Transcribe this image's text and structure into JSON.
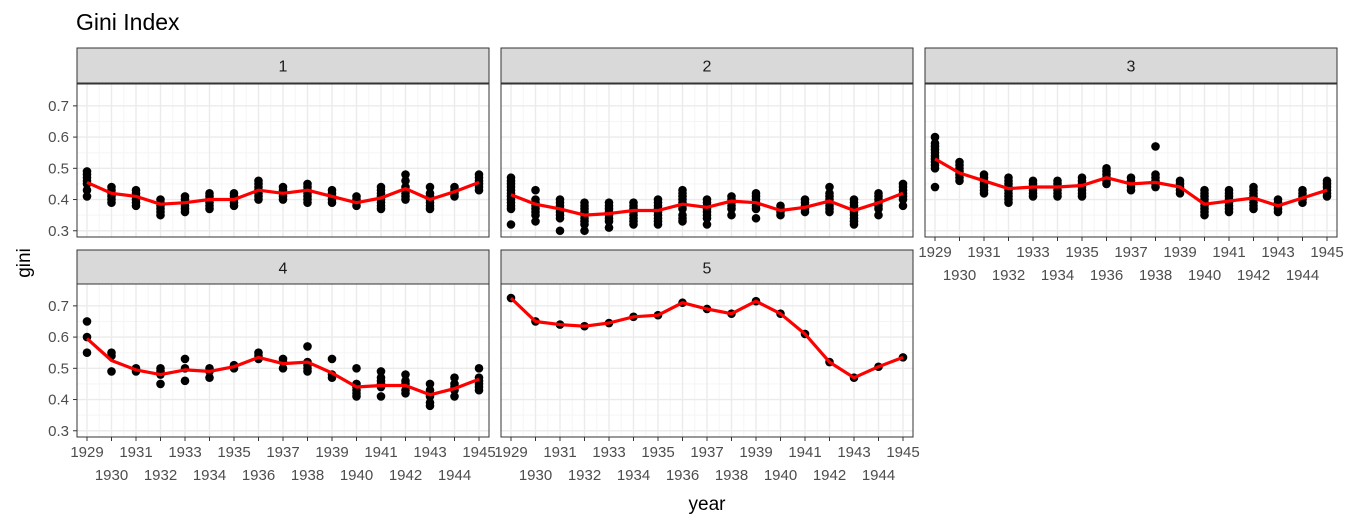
{
  "chart_data": {
    "type": "scatter",
    "title": "Gini Index",
    "xlabel": "year",
    "ylabel": "gini",
    "ylim": [
      0.28,
      0.77
    ],
    "y_ticks": [
      0.3,
      0.4,
      0.5,
      0.6,
      0.7
    ],
    "x_ticks": [
      1929,
      1930,
      1931,
      1932,
      1933,
      1934,
      1935,
      1936,
      1937,
      1938,
      1939,
      1940,
      1941,
      1942,
      1943,
      1944,
      1945
    ],
    "grid": true,
    "facet_layout": "3 columns, 2 rows",
    "colors": {
      "points": "#000000",
      "line": "#ff0000",
      "strip_fill": "#d9d9d9",
      "grid_major": "#ebebeb",
      "grid_minor": "#f5f5f5",
      "panel_border": "#333333"
    },
    "facets": [
      {
        "label": "1",
        "points": [
          [
            1929,
            [
              0.41,
              0.43,
              0.45,
              0.46,
              0.47,
              0.48,
              0.49
            ]
          ],
          [
            1930,
            [
              0.39,
              0.4,
              0.41,
              0.42,
              0.43,
              0.44
            ]
          ],
          [
            1931,
            [
              0.38,
              0.39,
              0.4,
              0.41,
              0.42,
              0.43
            ]
          ],
          [
            1932,
            [
              0.35,
              0.36,
              0.37,
              0.38,
              0.39,
              0.4
            ]
          ],
          [
            1933,
            [
              0.36,
              0.37,
              0.38,
              0.39,
              0.4,
              0.41
            ]
          ],
          [
            1934,
            [
              0.37,
              0.38,
              0.39,
              0.4,
              0.41,
              0.42
            ]
          ],
          [
            1935,
            [
              0.38,
              0.39,
              0.4,
              0.41,
              0.42
            ]
          ],
          [
            1936,
            [
              0.4,
              0.41,
              0.42,
              0.43,
              0.44,
              0.45,
              0.46
            ]
          ],
          [
            1937,
            [
              0.4,
              0.41,
              0.42,
              0.43,
              0.44
            ]
          ],
          [
            1938,
            [
              0.39,
              0.4,
              0.41,
              0.42,
              0.43,
              0.44,
              0.45
            ]
          ],
          [
            1939,
            [
              0.39,
              0.4,
              0.41,
              0.42,
              0.43
            ]
          ],
          [
            1940,
            [
              0.38,
              0.39,
              0.4,
              0.41
            ]
          ],
          [
            1941,
            [
              0.37,
              0.38,
              0.39,
              0.4,
              0.41,
              0.42,
              0.43,
              0.44
            ]
          ],
          [
            1942,
            [
              0.4,
              0.41,
              0.42,
              0.44,
              0.46,
              0.48
            ]
          ],
          [
            1943,
            [
              0.37,
              0.38,
              0.39,
              0.4,
              0.41,
              0.42,
              0.44
            ]
          ],
          [
            1944,
            [
              0.41,
              0.42,
              0.43,
              0.44
            ]
          ],
          [
            1945,
            [
              0.43,
              0.44,
              0.45,
              0.46,
              0.47,
              0.48
            ]
          ]
        ],
        "trend": [
          0.455,
          0.42,
          0.41,
          0.385,
          0.39,
          0.4,
          0.4,
          0.43,
          0.42,
          0.43,
          0.41,
          0.39,
          0.405,
          0.435,
          0.4,
          0.425,
          0.455
        ]
      },
      {
        "label": "2",
        "points": [
          [
            1929,
            [
              0.32,
              0.37,
              0.38,
              0.39,
              0.4,
              0.41,
              0.42,
              0.43,
              0.44,
              0.45,
              0.46,
              0.47
            ]
          ],
          [
            1930,
            [
              0.33,
              0.35,
              0.36,
              0.37,
              0.38,
              0.39,
              0.4,
              0.43
            ]
          ],
          [
            1931,
            [
              0.3,
              0.34,
              0.35,
              0.36,
              0.37,
              0.38,
              0.39,
              0.4
            ]
          ],
          [
            1932,
            [
              0.3,
              0.32,
              0.33,
              0.34,
              0.35,
              0.36,
              0.37,
              0.38,
              0.39
            ]
          ],
          [
            1933,
            [
              0.31,
              0.33,
              0.34,
              0.35,
              0.36,
              0.37,
              0.38,
              0.39
            ]
          ],
          [
            1934,
            [
              0.32,
              0.33,
              0.34,
              0.35,
              0.36,
              0.37,
              0.38,
              0.39
            ]
          ],
          [
            1935,
            [
              0.32,
              0.33,
              0.34,
              0.35,
              0.36,
              0.37,
              0.38,
              0.39,
              0.4
            ]
          ],
          [
            1936,
            [
              0.33,
              0.34,
              0.35,
              0.37,
              0.38,
              0.39,
              0.4,
              0.41,
              0.42,
              0.43
            ]
          ],
          [
            1937,
            [
              0.32,
              0.34,
              0.35,
              0.36,
              0.37,
              0.38,
              0.39,
              0.4
            ]
          ],
          [
            1938,
            [
              0.35,
              0.37,
              0.38,
              0.39,
              0.4,
              0.41
            ]
          ],
          [
            1939,
            [
              0.34,
              0.37,
              0.38,
              0.39,
              0.4,
              0.41,
              0.42
            ]
          ],
          [
            1940,
            [
              0.35,
              0.36,
              0.37,
              0.38
            ]
          ],
          [
            1941,
            [
              0.36,
              0.37,
              0.38,
              0.39,
              0.4
            ]
          ],
          [
            1942,
            [
              0.36,
              0.37,
              0.38,
              0.39,
              0.4,
              0.41,
              0.42,
              0.44
            ]
          ],
          [
            1943,
            [
              0.32,
              0.33,
              0.34,
              0.35,
              0.36,
              0.37,
              0.38,
              0.39,
              0.4
            ]
          ],
          [
            1944,
            [
              0.35,
              0.37,
              0.38,
              0.39,
              0.4,
              0.41,
              0.42
            ]
          ],
          [
            1945,
            [
              0.38,
              0.4,
              0.41,
              0.42,
              0.43,
              0.44,
              0.45
            ]
          ]
        ],
        "trend": [
          0.415,
          0.385,
          0.37,
          0.35,
          0.355,
          0.365,
          0.365,
          0.385,
          0.375,
          0.395,
          0.39,
          0.365,
          0.375,
          0.395,
          0.365,
          0.39,
          0.42
        ]
      },
      {
        "label": "3",
        "points": [
          [
            1929,
            [
              0.44,
              0.5,
              0.51,
              0.52,
              0.53,
              0.54,
              0.55,
              0.56,
              0.57,
              0.58,
              0.6
            ]
          ],
          [
            1930,
            [
              0.46,
              0.47,
              0.48,
              0.49,
              0.5,
              0.51,
              0.52
            ]
          ],
          [
            1931,
            [
              0.42,
              0.43,
              0.44,
              0.45,
              0.46,
              0.47,
              0.48
            ]
          ],
          [
            1932,
            [
              0.39,
              0.4,
              0.41,
              0.42,
              0.43,
              0.44,
              0.45,
              0.46,
              0.47
            ]
          ],
          [
            1933,
            [
              0.41,
              0.42,
              0.43,
              0.44,
              0.45,
              0.46
            ]
          ],
          [
            1934,
            [
              0.41,
              0.42,
              0.43,
              0.44,
              0.45,
              0.46
            ]
          ],
          [
            1935,
            [
              0.41,
              0.42,
              0.43,
              0.44,
              0.45,
              0.46,
              0.47
            ]
          ],
          [
            1936,
            [
              0.45,
              0.46,
              0.47,
              0.48,
              0.49,
              0.5
            ]
          ],
          [
            1937,
            [
              0.43,
              0.44,
              0.45,
              0.46,
              0.47
            ]
          ],
          [
            1938,
            [
              0.44,
              0.45,
              0.46,
              0.47,
              0.48,
              0.57
            ]
          ],
          [
            1939,
            [
              0.42,
              0.43,
              0.44,
              0.45,
              0.46
            ]
          ],
          [
            1940,
            [
              0.35,
              0.36,
              0.37,
              0.38,
              0.39,
              0.4,
              0.41,
              0.42,
              0.43
            ]
          ],
          [
            1941,
            [
              0.36,
              0.37,
              0.38,
              0.39,
              0.4,
              0.41,
              0.42,
              0.43
            ]
          ],
          [
            1942,
            [
              0.37,
              0.38,
              0.39,
              0.4,
              0.41,
              0.42,
              0.43,
              0.44
            ]
          ],
          [
            1943,
            [
              0.36,
              0.37,
              0.38,
              0.39,
              0.4
            ]
          ],
          [
            1944,
            [
              0.39,
              0.4,
              0.41,
              0.42,
              0.43
            ]
          ],
          [
            1945,
            [
              0.41,
              0.42,
              0.43,
              0.44,
              0.45,
              0.46
            ]
          ]
        ],
        "trend": [
          0.53,
          0.485,
          0.46,
          0.435,
          0.44,
          0.44,
          0.445,
          0.47,
          0.45,
          0.455,
          0.44,
          0.385,
          0.395,
          0.405,
          0.38,
          0.405,
          0.43
        ]
      },
      {
        "label": "4",
        "points": [
          [
            1929,
            [
              0.55,
              0.6,
              0.65
            ]
          ],
          [
            1930,
            [
              0.49,
              0.54,
              0.55
            ]
          ],
          [
            1931,
            [
              0.49,
              0.5
            ]
          ],
          [
            1932,
            [
              0.45,
              0.48,
              0.49,
              0.5
            ]
          ],
          [
            1933,
            [
              0.46,
              0.5,
              0.53
            ]
          ],
          [
            1934,
            [
              0.47,
              0.49,
              0.5
            ]
          ],
          [
            1935,
            [
              0.5,
              0.51
            ]
          ],
          [
            1936,
            [
              0.53,
              0.54,
              0.55
            ]
          ],
          [
            1937,
            [
              0.5,
              0.52,
              0.53
            ]
          ],
          [
            1938,
            [
              0.49,
              0.5,
              0.51,
              0.52,
              0.57
            ]
          ],
          [
            1939,
            [
              0.47,
              0.48,
              0.53
            ]
          ],
          [
            1940,
            [
              0.41,
              0.42,
              0.43,
              0.44,
              0.45,
              0.5
            ]
          ],
          [
            1941,
            [
              0.41,
              0.44,
              0.45,
              0.46,
              0.47,
              0.49
            ]
          ],
          [
            1942,
            [
              0.42,
              0.43,
              0.45,
              0.46,
              0.48
            ]
          ],
          [
            1943,
            [
              0.38,
              0.39,
              0.41,
              0.42,
              0.43,
              0.45
            ]
          ],
          [
            1944,
            [
              0.41,
              0.43,
              0.44,
              0.45,
              0.47
            ]
          ],
          [
            1945,
            [
              0.43,
              0.44,
              0.45,
              0.46,
              0.47,
              0.5
            ]
          ]
        ],
        "trend": [
          0.595,
          0.525,
          0.495,
          0.48,
          0.495,
          0.49,
          0.505,
          0.535,
          0.515,
          0.52,
          0.485,
          0.44,
          0.445,
          0.445,
          0.415,
          0.435,
          0.465
        ]
      },
      {
        "label": "5",
        "points": [
          [
            1929,
            [
              0.725
            ]
          ],
          [
            1930,
            [
              0.65
            ]
          ],
          [
            1931,
            [
              0.64
            ]
          ],
          [
            1932,
            [
              0.635
            ]
          ],
          [
            1933,
            [
              0.645
            ]
          ],
          [
            1934,
            [
              0.665
            ]
          ],
          [
            1935,
            [
              0.67
            ]
          ],
          [
            1936,
            [
              0.71
            ]
          ],
          [
            1937,
            [
              0.69
            ]
          ],
          [
            1938,
            [
              0.675
            ]
          ],
          [
            1939,
            [
              0.715
            ]
          ],
          [
            1940,
            [
              0.675
            ]
          ],
          [
            1941,
            [
              0.61
            ]
          ],
          [
            1942,
            [
              0.52
            ]
          ],
          [
            1943,
            [
              0.47
            ]
          ],
          [
            1944,
            [
              0.505
            ]
          ],
          [
            1945,
            [
              0.535
            ]
          ]
        ],
        "trend": [
          0.725,
          0.65,
          0.64,
          0.635,
          0.645,
          0.665,
          0.67,
          0.71,
          0.69,
          0.675,
          0.715,
          0.675,
          0.61,
          0.52,
          0.47,
          0.505,
          0.535
        ]
      }
    ]
  }
}
